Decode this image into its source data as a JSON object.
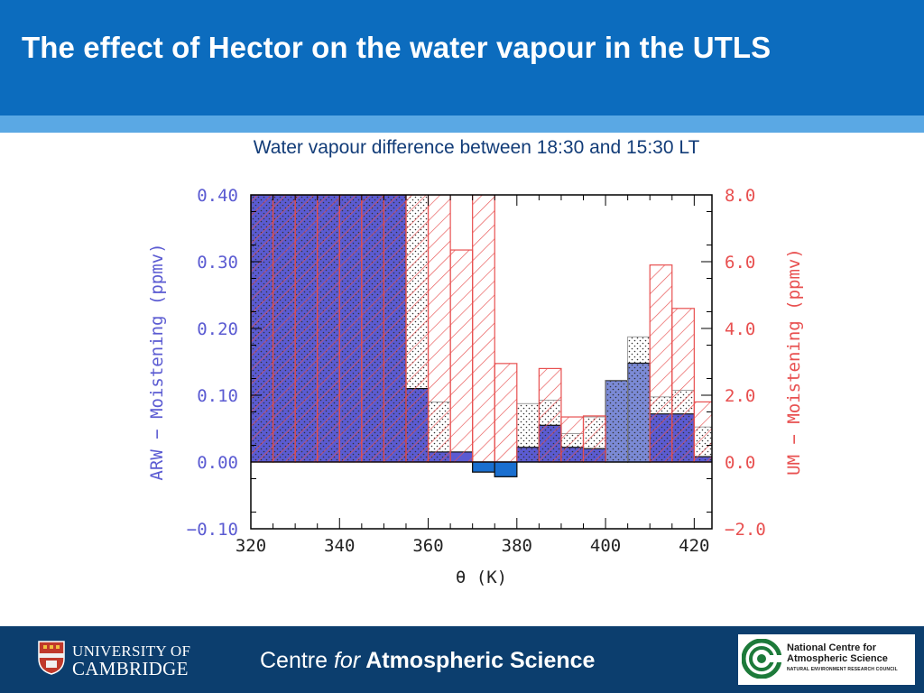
{
  "header": {
    "title": "The effect of Hector on the water vapour in the UTLS",
    "bg_color": "#0c6cbe",
    "stripe_color": "#5aa8e4"
  },
  "subtitle": "Water vapour difference between 18:30 and 15:30 LT",
  "chart_data": {
    "type": "bar",
    "xlabel": "θ (K)",
    "xlim": [
      320,
      424
    ],
    "xticks": [
      "320",
      "340",
      "360",
      "380",
      "400",
      "420"
    ],
    "bin_width": 5,
    "bin_left_edges": [
      320,
      325,
      330,
      335,
      340,
      345,
      350,
      355,
      360,
      365,
      370,
      375,
      380,
      385,
      390,
      395,
      400,
      405,
      410,
      415,
      420
    ],
    "left_axis": {
      "label": "ARW − Moistening (ppmv)",
      "ylim": [
        -0.1,
        0.4
      ],
      "ticks": [
        "−0.10",
        "0.00",
        "0.10",
        "0.20",
        "0.30",
        "0.40"
      ],
      "color": "#5b5bd2"
    },
    "right_axis": {
      "label": "UM − Moistening (ppmv)",
      "ylim": [
        -2.0,
        8.0
      ],
      "ticks": [
        "−2.0",
        "0.0",
        "2.0",
        "4.0",
        "6.0",
        "8.0"
      ],
      "color": "#e85050"
    },
    "series": [
      {
        "axis": "left",
        "style": "solid",
        "color": "#5b5bd2",
        "values": [
          0.4,
          0.4,
          0.4,
          0.4,
          0.4,
          0.4,
          0.4,
          0.11,
          0.015,
          0.015,
          -0.015,
          -0.022,
          0.022,
          0.055,
          0.022,
          0.02,
          0.042,
          0.045,
          0.072,
          0.072,
          0.008
        ]
      },
      {
        "axis": "left",
        "style": "solid",
        "color": "#7b8ad6",
        "values": [
          null,
          null,
          null,
          null,
          null,
          null,
          null,
          null,
          null,
          null,
          null,
          null,
          null,
          null,
          null,
          null,
          0.122,
          0.148,
          null,
          null,
          null
        ]
      },
      {
        "axis": "left",
        "style": "solid",
        "color": "#1a6fd0",
        "values": [
          null,
          null,
          null,
          null,
          null,
          null,
          null,
          null,
          null,
          null,
          -0.015,
          -0.022,
          null,
          null,
          null,
          null,
          null,
          null,
          null,
          null,
          null
        ]
      },
      {
        "axis": "right",
        "style": "hatched",
        "color": "#e85050",
        "values": [
          8.0,
          8.0,
          8.0,
          8.0,
          8.0,
          8.0,
          8.0,
          8.0,
          8.0,
          6.35,
          8.0,
          2.95,
          null,
          2.8,
          1.35,
          1.38,
          null,
          null,
          5.9,
          4.6,
          1.8
        ]
      },
      {
        "axis": "right",
        "style": "dotted",
        "color": "#222222",
        "values": [
          8.0,
          8.0,
          8.0,
          8.0,
          8.0,
          8.0,
          8.0,
          8.0,
          1.8,
          null,
          null,
          null,
          1.75,
          1.85,
          0.85,
          1.35,
          2.45,
          3.75,
          1.95,
          2.15,
          1.05
        ]
      }
    ],
    "grid": false,
    "legend": "none"
  },
  "footer": {
    "bg_color": "#0c3e6e",
    "cambridge_line1": "UNIVERSITY OF",
    "cambridge_line2": "CAMBRIDGE",
    "centre_prefix": "Centre ",
    "centre_italic": "for",
    "centre_bold": " Atmospheric Science",
    "ncas_line1": "National Centre for",
    "ncas_line2": "Atmospheric Science",
    "ncas_sub": "NATURAL ENVIRONMENT RESEARCH COUNCIL"
  }
}
